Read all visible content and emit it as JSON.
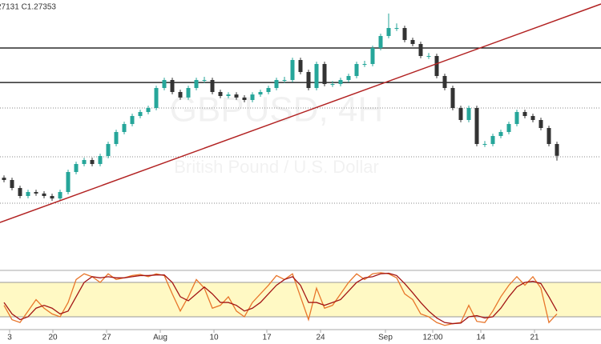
{
  "chart_data": [
    {
      "type": "candlestick",
      "header": "27131 C1.27353",
      "watermark": [
        "GBPUSD, 4H",
        "British Pound / U.S. Dollar"
      ],
      "xlim": [
        -0.5,
        74.5
      ],
      "ylim": [
        1.2146,
        1.3553
      ],
      "up_color": "#26a69a",
      "down_color": "#333333",
      "candles": [
        [
          1.262,
          1.2632,
          1.2596,
          1.2608
        ],
        [
          1.2608,
          1.262,
          1.2554,
          1.2566
        ],
        [
          1.2566,
          1.2578,
          1.2512,
          1.2524
        ],
        [
          1.2524,
          1.2557,
          1.2512,
          1.2545
        ],
        [
          1.2545,
          1.2557,
          1.2525,
          1.2537
        ],
        [
          1.2537,
          1.2549,
          1.2512,
          1.2524
        ],
        [
          1.2524,
          1.2536,
          1.2499,
          1.2511
        ],
        [
          1.2511,
          1.2557,
          1.2499,
          1.2545
        ],
        [
          1.2545,
          1.2662,
          1.2533,
          1.265
        ],
        [
          1.265,
          1.2704,
          1.2638,
          1.2692
        ],
        [
          1.2692,
          1.2725,
          1.268,
          1.2713
        ],
        [
          1.2713,
          1.2725,
          1.268,
          1.2692
        ],
        [
          1.2692,
          1.2746,
          1.268,
          1.2734
        ],
        [
          1.2734,
          1.2809,
          1.2722,
          1.2797
        ],
        [
          1.2797,
          1.2872,
          1.2785,
          1.286
        ],
        [
          1.286,
          1.2914,
          1.2848,
          1.2902
        ],
        [
          1.2902,
          1.2956,
          1.289,
          1.2944
        ],
        [
          1.2944,
          1.2977,
          1.2932,
          1.2965
        ],
        [
          1.2965,
          1.2998,
          1.2953,
          1.2986
        ],
        [
          1.2986,
          1.3103,
          1.2974,
          1.3091
        ],
        [
          1.3091,
          1.3145,
          1.3079,
          1.3133
        ],
        [
          1.3133,
          1.3145,
          1.3058,
          1.307
        ],
        [
          1.307,
          1.3082,
          1.3029,
          1.3041
        ],
        [
          1.3041,
          1.3103,
          1.3029,
          1.3091
        ],
        [
          1.3091,
          1.3145,
          1.3079,
          1.3133
        ],
        [
          1.3133,
          1.315,
          1.3118,
          1.3133
        ],
        [
          1.3133,
          1.3145,
          1.3058,
          1.307
        ],
        [
          1.307,
          1.3082,
          1.3037,
          1.3049
        ],
        [
          1.3049,
          1.3069,
          1.3037,
          1.3057
        ],
        [
          1.3057,
          1.3069,
          1.3029,
          1.3041
        ],
        [
          1.3041,
          1.3053,
          1.3016,
          1.3028
        ],
        [
          1.3028,
          1.3069,
          1.3016,
          1.3057
        ],
        [
          1.3057,
          1.3082,
          1.3045,
          1.307
        ],
        [
          1.307,
          1.3103,
          1.3058,
          1.3091
        ],
        [
          1.3091,
          1.3145,
          1.3079,
          1.3133
        ],
        [
          1.3133,
          1.315,
          1.3118,
          1.3133
        ],
        [
          1.3133,
          1.325,
          1.3121,
          1.3238
        ],
        [
          1.3238,
          1.325,
          1.3163,
          1.3175
        ],
        [
          1.3175,
          1.3187,
          1.3079,
          1.3091
        ],
        [
          1.3091,
          1.3229,
          1.3079,
          1.3217
        ],
        [
          1.3217,
          1.3229,
          1.31,
          1.3112
        ],
        [
          1.3112,
          1.3128,
          1.3096,
          1.3112
        ],
        [
          1.3112,
          1.3145,
          1.31,
          1.3133
        ],
        [
          1.3133,
          1.3166,
          1.3121,
          1.3154
        ],
        [
          1.3154,
          1.3229,
          1.3142,
          1.3217
        ],
        [
          1.3217,
          1.3234,
          1.3201,
          1.3217
        ],
        [
          1.3217,
          1.3313,
          1.3205,
          1.3301
        ],
        [
          1.3301,
          1.3376,
          1.3289,
          1.3364
        ],
        [
          1.3364,
          1.3482,
          1.3352,
          1.3406
        ],
        [
          1.3406,
          1.343,
          1.339,
          1.3406
        ],
        [
          1.3406,
          1.3418,
          1.3331,
          1.3343
        ],
        [
          1.3343,
          1.3355,
          1.331,
          1.3322
        ],
        [
          1.3322,
          1.3334,
          1.3247,
          1.3259
        ],
        [
          1.3259,
          1.3275,
          1.3243,
          1.3259
        ],
        [
          1.3259,
          1.3271,
          1.3142,
          1.3154
        ],
        [
          1.3154,
          1.3166,
          1.3079,
          1.3091
        ],
        [
          1.3091,
          1.3103,
          1.2974,
          1.2986
        ],
        [
          1.2986,
          1.2998,
          1.2911,
          1.2923
        ],
        [
          1.2923,
          1.2998,
          1.2911,
          1.2986
        ],
        [
          1.2986,
          1.2998,
          1.2785,
          1.2797
        ],
        [
          1.2797,
          1.2813,
          1.2781,
          1.2797
        ],
        [
          1.2797,
          1.2851,
          1.2785,
          1.2839
        ],
        [
          1.2839,
          1.2872,
          1.2827,
          1.286
        ],
        [
          1.286,
          1.2914,
          1.2848,
          1.2902
        ],
        [
          1.2902,
          1.2977,
          1.289,
          1.2965
        ],
        [
          1.2965,
          1.2977,
          1.2932,
          1.2944
        ],
        [
          1.2944,
          1.2956,
          1.2911,
          1.2923
        ],
        [
          1.2923,
          1.2935,
          1.2869,
          1.2881
        ],
        [
          1.2881,
          1.2893,
          1.2785,
          1.2797
        ],
        [
          1.2797,
          1.2809,
          1.271,
          1.2735
        ]
      ],
      "solid_levels": [
        1.3301,
        1.312
      ],
      "dotted_levels": [
        1.2986,
        1.273,
        1.2486
      ],
      "trendline": {
        "x": [
          -0.5,
          74.5
        ],
        "values": [
          1.2385,
          1.3532
        ],
        "color": "#b22222"
      }
    },
    {
      "type": "stochastic",
      "xlim": [
        -0.5,
        74.5
      ],
      "ylim": [
        0,
        100
      ],
      "band": [
        20,
        80
      ],
      "band_color": "#fff9c4",
      "xticks": [
        {
          "value": 0.7,
          "label": "3"
        },
        {
          "value": 6.1,
          "label": "20"
        },
        {
          "value": 12.8,
          "label": "27"
        },
        {
          "value": 19.5,
          "label": "Aug"
        },
        {
          "value": 26.2,
          "label": "10"
        },
        {
          "value": 32.8,
          "label": "17"
        },
        {
          "value": 39.5,
          "label": "24"
        },
        {
          "value": 47.6,
          "label": "Sep"
        },
        {
          "value": 53.5,
          "label": "12:00"
        },
        {
          "value": 59.5,
          "label": "14"
        },
        {
          "value": 66.2,
          "label": "21"
        }
      ],
      "series": [
        {
          "color": "#e8762b",
          "values": [
            40,
            15,
            10,
            30,
            50,
            35,
            25,
            20,
            45,
            85,
            95,
            90,
            80,
            95,
            85,
            88,
            92,
            94,
            90,
            95,
            92,
            60,
            30,
            55,
            85,
            70,
            35,
            40,
            55,
            30,
            20,
            45,
            60,
            75,
            92,
            85,
            95,
            55,
            15,
            70,
            35,
            40,
            60,
            80,
            95,
            85,
            95,
            97,
            95,
            88,
            60,
            50,
            25,
            20,
            10,
            5,
            8,
            10,
            40,
            12,
            10,
            30,
            55,
            75,
            90,
            75,
            90,
            70,
            10,
            25
          ]
        },
        {
          "color": "#a31515",
          "values": [
            45,
            25,
            15,
            20,
            35,
            40,
            35,
            25,
            30,
            55,
            80,
            90,
            88,
            90,
            88,
            88,
            90,
            92,
            92,
            93,
            93,
            80,
            55,
            48,
            60,
            72,
            60,
            45,
            45,
            40,
            30,
            35,
            45,
            60,
            75,
            85,
            90,
            75,
            45,
            45,
            40,
            45,
            50,
            65,
            80,
            88,
            90,
            95,
            96,
            92,
            78,
            62,
            45,
            30,
            18,
            10,
            8,
            9,
            20,
            22,
            18,
            20,
            35,
            55,
            72,
            80,
            82,
            78,
            55,
            30
          ]
        }
      ]
    }
  ]
}
